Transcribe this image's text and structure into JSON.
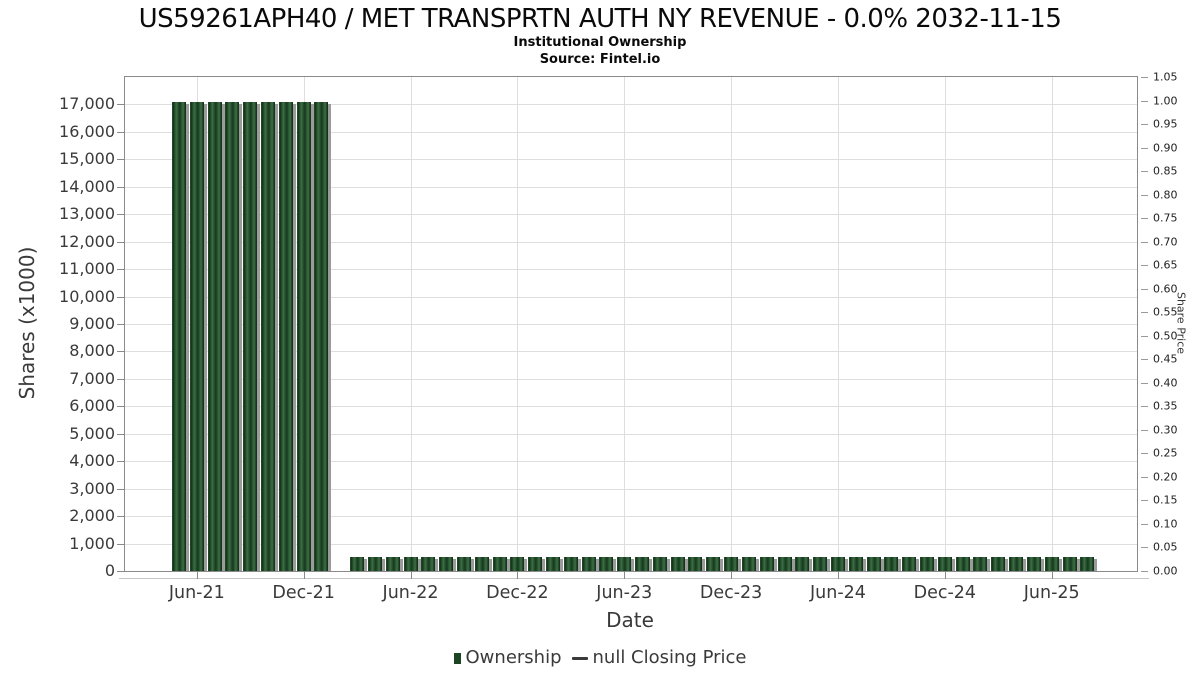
{
  "header": {
    "title": "US59261APH40 / MET TRANSPRTN AUTH NY REVENUE - 0.0% 2032-11-15",
    "subtitle": "Institutional Ownership",
    "source": "Source: Fintel.io"
  },
  "legend": {
    "ownership_label": "Ownership",
    "closing_price_label": "null Closing Price"
  },
  "colors": {
    "bar_green": "#1d4524",
    "bar_shadow": "#9b9b9b",
    "gridline": "#dedede",
    "axis_spine": "#8a8a8a",
    "tick_text": "#3a3a3a"
  },
  "chart_data": {
    "type": "bar",
    "title": "US59261APH40 / MET TRANSPRTN AUTH NY REVENUE - 0.0% 2032-11-15",
    "subtitle": "Institutional Ownership",
    "source": "Source: Fintel.io",
    "xlabel": "Date",
    "ylabel": "Shares (x1000)",
    "ylabel_right": "Share Price",
    "legend_entries": [
      "Ownership",
      "null Closing Price"
    ],
    "legend_position": "bottom",
    "grid": true,
    "ylim_left": [
      0,
      18000
    ],
    "ylim_right": [
      0,
      1.05
    ],
    "left_axis_ticks": [
      0,
      1000,
      2000,
      3000,
      4000,
      5000,
      6000,
      7000,
      8000,
      9000,
      10000,
      11000,
      12000,
      13000,
      14000,
      15000,
      16000,
      17000
    ],
    "right_axis_ticks": [
      0.0,
      0.05,
      0.1,
      0.15,
      0.2,
      0.25,
      0.3,
      0.35,
      0.4,
      0.45,
      0.5,
      0.55,
      0.6,
      0.65,
      0.7,
      0.75,
      0.8,
      0.85,
      0.9,
      0.95,
      1.0,
      1.05
    ],
    "x_tick_indices": [
      1,
      7,
      13,
      19,
      25,
      31,
      37,
      43,
      49
    ],
    "x_tick_labels": [
      "Jun-21",
      "Dec-21",
      "Jun-22",
      "Dec-22",
      "Jun-23",
      "Dec-23",
      "Jun-24",
      "Dec-24",
      "Jun-25"
    ],
    "categories": [
      "May-21",
      "Jun-21",
      "Jul-21",
      "Aug-21",
      "Sep-21",
      "Oct-21",
      "Nov-21",
      "Dec-21",
      "Jan-22",
      "Feb-22",
      "Mar-22",
      "Apr-22",
      "May-22",
      "Jun-22",
      "Jul-22",
      "Aug-22",
      "Sep-22",
      "Oct-22",
      "Nov-22",
      "Dec-22",
      "Jan-23",
      "Feb-23",
      "Mar-23",
      "Apr-23",
      "May-23",
      "Jun-23",
      "Jul-23",
      "Aug-23",
      "Sep-23",
      "Oct-23",
      "Nov-23",
      "Dec-23",
      "Jan-24",
      "Feb-24",
      "Mar-24",
      "Apr-24",
      "May-24",
      "Jun-24",
      "Jul-24",
      "Aug-24",
      "Sep-24",
      "Oct-24",
      "Nov-24",
      "Dec-24",
      "Jan-25",
      "Feb-25",
      "Mar-25",
      "Apr-25",
      "May-25",
      "Jun-25",
      "Jul-25",
      "Aug-25"
    ],
    "series": [
      {
        "name": "Ownership",
        "values": [
          17100,
          17100,
          17100,
          17100,
          17100,
          17100,
          17100,
          17100,
          17100,
          null,
          500,
          500,
          500,
          500,
          500,
          500,
          500,
          500,
          500,
          500,
          500,
          500,
          500,
          500,
          500,
          500,
          500,
          500,
          500,
          500,
          500,
          500,
          500,
          500,
          500,
          500,
          500,
          500,
          500,
          500,
          500,
          500,
          500,
          500,
          500,
          500,
          500,
          500,
          500,
          500,
          500,
          500
        ]
      },
      {
        "name": "null Closing Price",
        "values": []
      }
    ]
  }
}
